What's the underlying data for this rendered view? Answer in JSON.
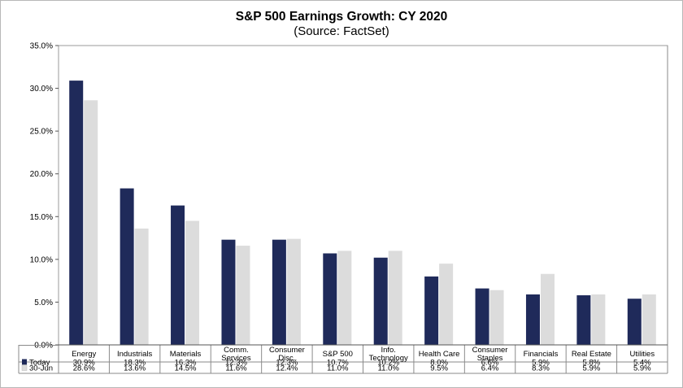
{
  "chart_data": {
    "type": "bar",
    "title": "S&P 500 Earnings Growth: CY 2020",
    "subtitle": "(Source: FactSet)",
    "categories": [
      [
        "Energy"
      ],
      [
        "Industrials"
      ],
      [
        "Materials"
      ],
      [
        "Comm.",
        "Services"
      ],
      [
        "Consumer",
        "Disc."
      ],
      [
        "S&P 500"
      ],
      [
        "Info.",
        "Technology"
      ],
      [
        "Health Care"
      ],
      [
        "Consumer",
        "Staples"
      ],
      [
        "Financials"
      ],
      [
        "Real Estate"
      ],
      [
        "Utilities"
      ]
    ],
    "series": [
      {
        "name": "Today",
        "color": "#1f2a5a",
        "values": [
          30.9,
          18.3,
          16.3,
          12.3,
          12.3,
          10.7,
          10.2,
          8.0,
          6.6,
          5.9,
          5.8,
          5.4
        ],
        "labels": [
          "30.9%",
          "18.3%",
          "16.3%",
          "12.3%",
          "12.3%",
          "10.7%",
          "10.2%",
          "8.0%",
          "6.6%",
          "5.9%",
          "5.8%",
          "5.4%"
        ]
      },
      {
        "name": "30-Jun",
        "color": "#dcdcdc",
        "values": [
          28.6,
          13.6,
          14.5,
          11.6,
          12.4,
          11.0,
          11.0,
          9.5,
          6.4,
          8.3,
          5.9,
          5.9
        ],
        "labels": [
          "28.6%",
          "13.6%",
          "14.5%",
          "11.6%",
          "12.4%",
          "11.0%",
          "11.0%",
          "9.5%",
          "6.4%",
          "8.3%",
          "5.9%",
          "5.9%"
        ]
      }
    ],
    "ylim": [
      0,
      35
    ],
    "yticks": [
      0,
      5,
      10,
      15,
      20,
      25,
      30,
      35
    ],
    "ytick_labels": [
      "0.0%",
      "5.0%",
      "10.0%",
      "15.0%",
      "20.0%",
      "25.0%",
      "30.0%",
      "35.0%"
    ],
    "xlabel": "",
    "ylabel": "",
    "grid": false,
    "legend": "data-table"
  }
}
